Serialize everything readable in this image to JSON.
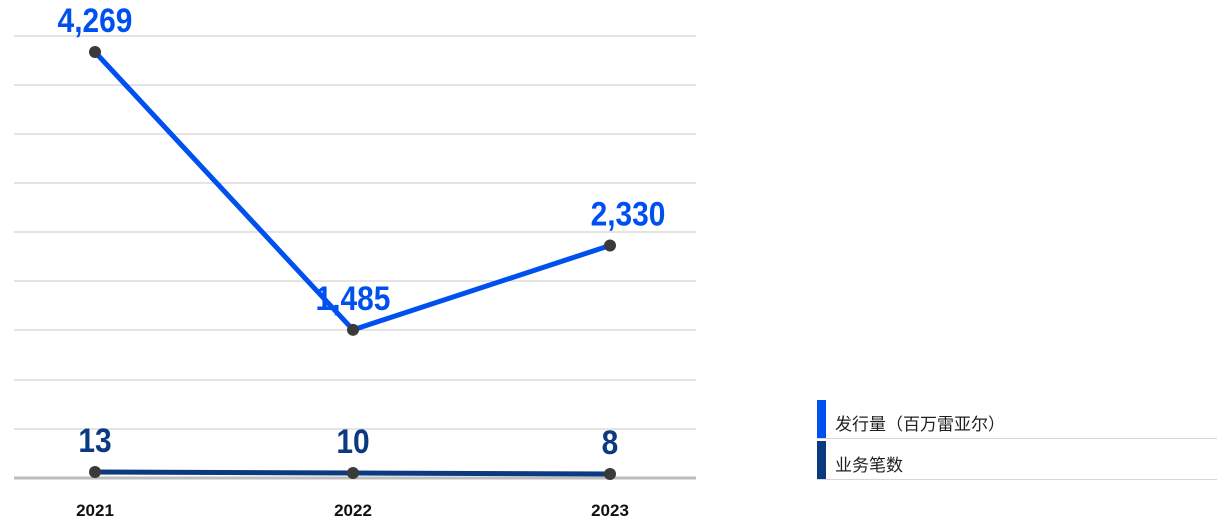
{
  "chart_data": {
    "type": "line",
    "categories": [
      "2021",
      "2022",
      "2023"
    ],
    "series": [
      {
        "name": "发行量（百万雷亚尔）",
        "values": [
          4269,
          1485,
          2330
        ],
        "labels": [
          "4,269",
          "1,485",
          "2,330"
        ],
        "color": "#0050f0"
      },
      {
        "name": "业务笔数",
        "values": [
          13,
          10,
          8
        ],
        "labels": [
          "13",
          "10",
          "8"
        ],
        "color": "#0b3a80"
      }
    ],
    "title": "",
    "xlabel": "",
    "ylabel": "",
    "ylim": [
      0,
      4500
    ],
    "grid": true,
    "legend_position": "bottom-right"
  },
  "colors": {
    "marker": "#3a3a3a",
    "grid": "#c8c8c8",
    "axis": "#bdbdbd",
    "category_label": "#111111"
  }
}
